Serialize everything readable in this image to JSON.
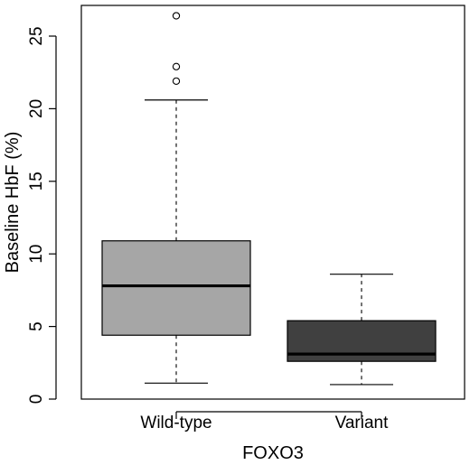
{
  "chart_data": {
    "type": "boxplot",
    "title": "",
    "xlabel": "FOXO3",
    "ylabel": "Baseline HbF (%)",
    "ylim": [
      0,
      27.5
    ],
    "yticks": [
      0,
      5,
      10,
      15,
      20,
      25
    ],
    "grid": false,
    "legend": "none",
    "categories": [
      "Wild-type",
      "Variant"
    ],
    "boxes": [
      {
        "category": "Wild-type",
        "whisker_low": 1.1,
        "q1": 4.4,
        "median": 7.8,
        "q3": 10.9,
        "whisker_high": 20.6,
        "outliers": [
          21.9,
          22.9,
          26.4
        ],
        "fill_color": "#a6a6a6"
      },
      {
        "category": "Variant",
        "whisker_low": 1.0,
        "q1": 2.6,
        "median": 3.1,
        "q3": 5.4,
        "whisker_high": 8.6,
        "outliers": [],
        "fill_color": "#404040"
      }
    ]
  }
}
